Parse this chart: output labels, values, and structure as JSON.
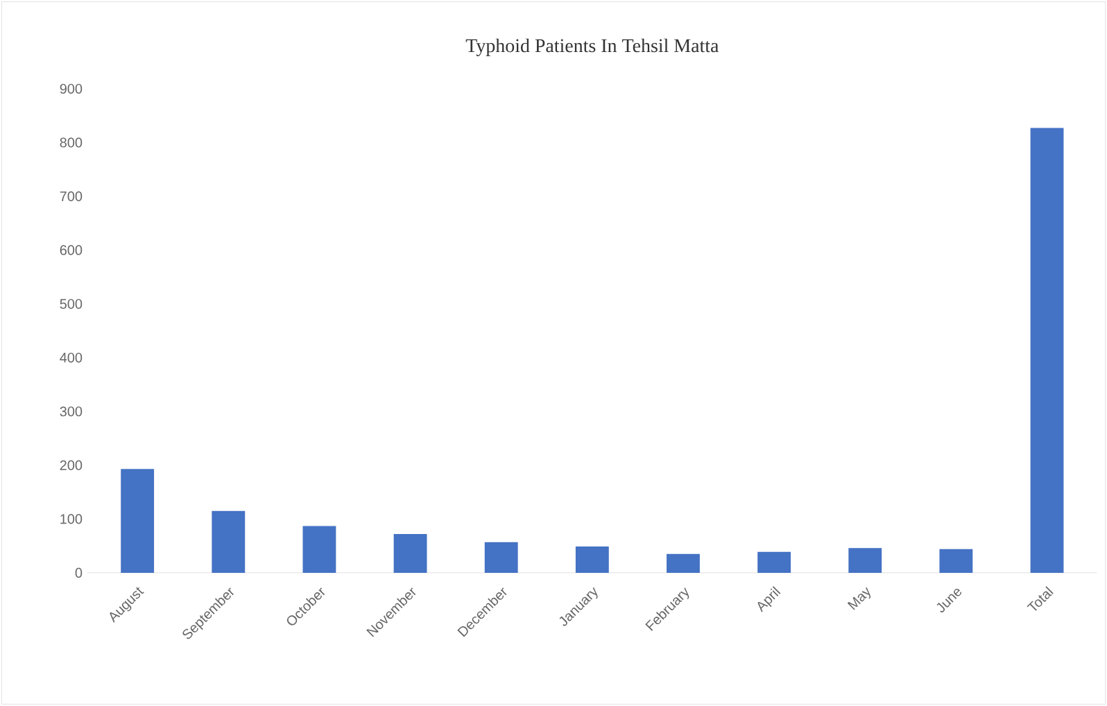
{
  "chart_data": {
    "type": "bar",
    "title": "Typhoid Patients In Tehsil Matta",
    "categories": [
      "August",
      "September",
      "October",
      "November",
      "December",
      "January",
      "February",
      "April",
      "May",
      "June",
      "Total"
    ],
    "values": [
      193,
      115,
      87,
      72,
      57,
      49,
      35,
      39,
      46,
      44,
      827
    ],
    "color": "#4472c4",
    "ylim": [
      0,
      900
    ],
    "yticks": [
      0,
      100,
      200,
      300,
      400,
      500,
      600,
      700,
      800,
      900
    ]
  }
}
